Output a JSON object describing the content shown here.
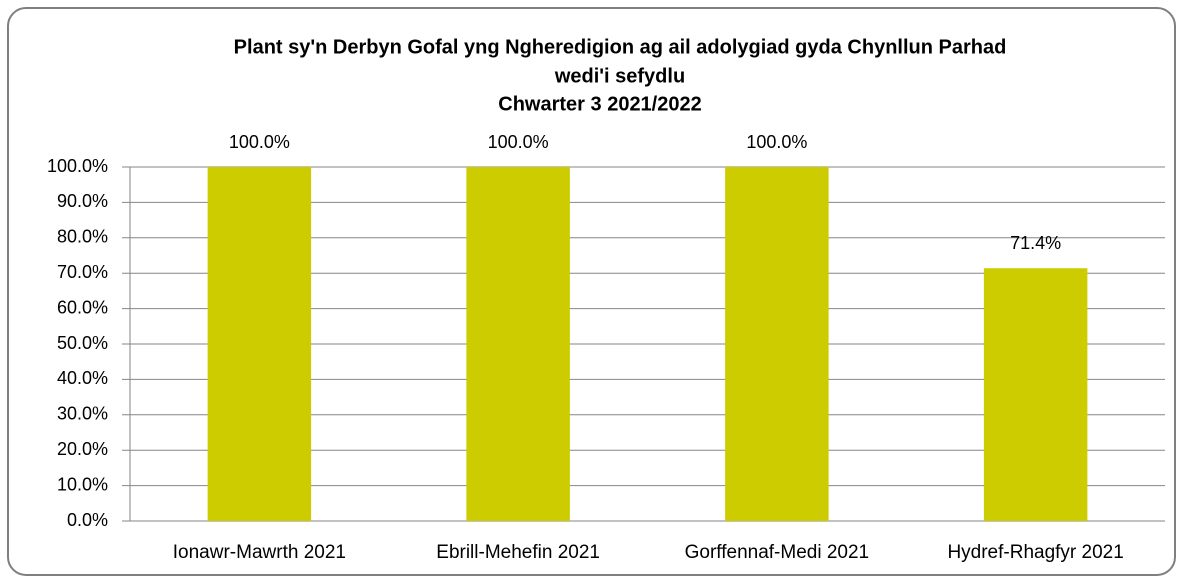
{
  "chart_data": {
    "type": "bar",
    "title": [
      "Plant sy'n Derbyn Gofal yng Ngheredigion ag ail adolygiad gyda Chynllun Parhad",
      "wedi'i sefydlu",
      "Chwarter 3  2021/2022"
    ],
    "categories": [
      "Ionawr-Mawrth 2021",
      "Ebrill-Mehefin 2021",
      "Gorffennaf-Medi 2021",
      "Hydref-Rhagfyr 2021"
    ],
    "values": [
      100,
      100,
      100,
      71.4
    ],
    "value_labels": [
      "100.0%",
      "100.0%",
      "100.0%",
      "71.4%"
    ],
    "color": "#cccc00",
    "ylim": [
      0,
      100
    ],
    "yticks": [
      {
        "value": 0,
        "label": "0.0%"
      },
      {
        "value": 10,
        "label": "10.0%"
      },
      {
        "value": 20,
        "label": "20.0%"
      },
      {
        "value": 30,
        "label": "30.0%"
      },
      {
        "value": 40,
        "label": "40.0%"
      },
      {
        "value": 50,
        "label": "50.0%"
      },
      {
        "value": 60,
        "label": "60.0%"
      },
      {
        "value": 70,
        "label": "70.0%"
      },
      {
        "value": 80,
        "label": "80.0%"
      },
      {
        "value": 90,
        "label": "90.0%"
      },
      {
        "value": 100,
        "label": "100.0%"
      }
    ],
    "grid": true
  }
}
